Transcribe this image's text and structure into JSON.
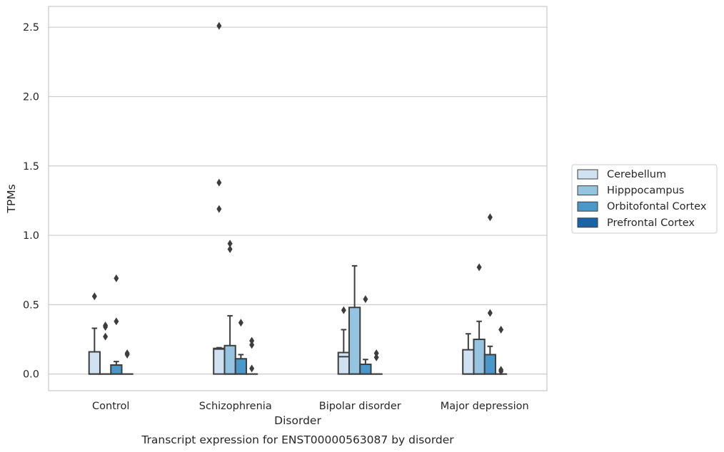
{
  "chart_data": {
    "type": "box",
    "title": "Transcript expression for ENST00000563087 by disorder",
    "xlabel": "Disorder",
    "ylabel": "TPMs",
    "ylim": [
      -0.12,
      2.65
    ],
    "yticks": [
      0.0,
      0.5,
      1.0,
      1.5,
      2.0,
      2.5
    ],
    "ytick_labels": [
      "0.0",
      "0.5",
      "1.0",
      "1.5",
      "2.0",
      "2.5"
    ],
    "grid": "horizontal",
    "legend_position": "right",
    "categories": [
      "Control",
      "Schizophrenia",
      "Bipolar disorder",
      "Major depression"
    ],
    "series": [
      {
        "name": "Cerebellum",
        "color": "#d0e1f2",
        "boxes": [
          {
            "q1": 0.0,
            "median": 0.0,
            "q3": 0.16,
            "whisker_low": 0.0,
            "whisker_high": 0.33,
            "outliers": [
              0.56
            ]
          },
          {
            "q1": 0.0,
            "median": 0.18,
            "q3": 0.185,
            "whisker_low": 0.0,
            "whisker_high": 0.19,
            "outliers": [
              2.51,
              1.38,
              1.19
            ]
          },
          {
            "q1": 0.0,
            "median": 0.125,
            "q3": 0.155,
            "whisker_low": 0.0,
            "whisker_high": 0.32,
            "outliers": [
              0.46
            ]
          },
          {
            "q1": 0.0,
            "median": 0.0,
            "q3": 0.175,
            "whisker_low": 0.0,
            "whisker_high": 0.29,
            "outliers": []
          }
        ]
      },
      {
        "name": "Hipppocampus",
        "color": "#94c4df",
        "boxes": [
          {
            "q1": 0.0,
            "median": 0.0,
            "q3": 0.0,
            "whisker_low": 0.0,
            "whisker_high": 0.0,
            "outliers": [
              0.35,
              0.34,
              0.27
            ]
          },
          {
            "q1": 0.0,
            "median": 0.0,
            "q3": 0.205,
            "whisker_low": 0.0,
            "whisker_high": 0.42,
            "outliers": [
              0.94,
              0.9
            ]
          },
          {
            "q1": 0.0,
            "median": 0.0,
            "q3": 0.48,
            "whisker_low": 0.0,
            "whisker_high": 0.78,
            "outliers": []
          },
          {
            "q1": 0.0,
            "median": 0.0,
            "q3": 0.25,
            "whisker_low": 0.0,
            "whisker_high": 0.38,
            "outliers": [
              0.77
            ]
          }
        ]
      },
      {
        "name": "Orbitofontal Cortex",
        "color": "#4a98c9",
        "boxes": [
          {
            "q1": 0.0,
            "median": 0.0,
            "q3": 0.065,
            "whisker_low": 0.0,
            "whisker_high": 0.09,
            "outliers": [
              0.69,
              0.38
            ]
          },
          {
            "q1": 0.0,
            "median": 0.0,
            "q3": 0.11,
            "whisker_low": 0.0,
            "whisker_high": 0.14,
            "outliers": [
              0.37
            ]
          },
          {
            "q1": 0.0,
            "median": 0.0,
            "q3": 0.07,
            "whisker_low": 0.0,
            "whisker_high": 0.105,
            "outliers": [
              0.54
            ]
          },
          {
            "q1": 0.0,
            "median": 0.0,
            "q3": 0.14,
            "whisker_low": 0.0,
            "whisker_high": 0.2,
            "outliers": [
              1.13,
              0.44
            ]
          }
        ]
      },
      {
        "name": "Prefrontal Cortex",
        "color": "#1764ab",
        "boxes": [
          {
            "q1": 0.0,
            "median": 0.0,
            "q3": 0.0,
            "whisker_low": 0.0,
            "whisker_high": 0.0,
            "outliers": [
              0.15,
              0.14
            ]
          },
          {
            "q1": 0.0,
            "median": 0.0,
            "q3": 0.0,
            "whisker_low": 0.0,
            "whisker_high": 0.0,
            "outliers": [
              0.24,
              0.21,
              0.04
            ]
          },
          {
            "q1": 0.0,
            "median": 0.0,
            "q3": 0.0,
            "whisker_low": 0.0,
            "whisker_high": 0.0,
            "outliers": [
              0.15,
              0.12
            ]
          },
          {
            "q1": 0.0,
            "median": 0.0,
            "q3": 0.0,
            "whisker_low": 0.0,
            "whisker_high": 0.0,
            "outliers": [
              0.32,
              0.03,
              0.02
            ]
          }
        ]
      }
    ]
  }
}
